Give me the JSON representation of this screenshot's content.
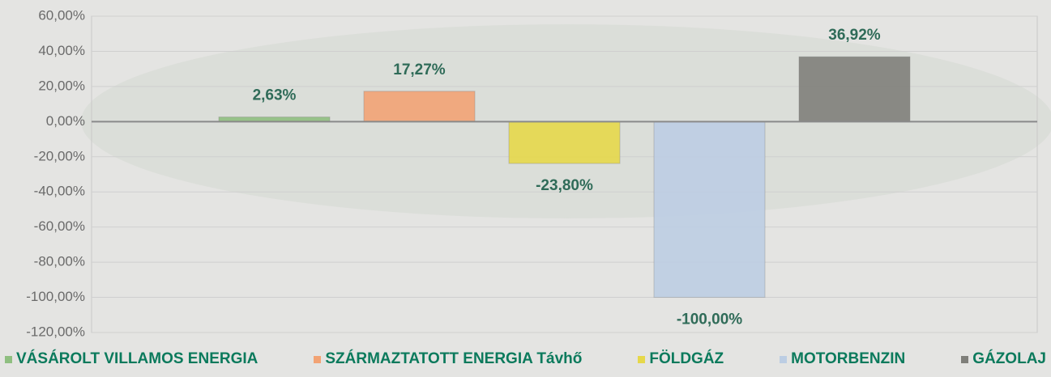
{
  "chart_data": {
    "type": "bar",
    "categories": [
      null
    ],
    "series": [
      {
        "name": "VÁSÁROLT VILLAMOS ENERGIA",
        "color": "#8fbf80",
        "values": [
          2.63
        ],
        "value_labels": [
          "2,63%"
        ]
      },
      {
        "name": "SZÁRMAZTATOTT ENERGIA Távhő",
        "color": "#f2a374",
        "values": [
          17.27
        ],
        "value_labels": [
          "17,27%"
        ]
      },
      {
        "name": "FÖLDGÁZ",
        "color": "#e6d84a",
        "values": [
          -23.8
        ],
        "value_labels": [
          "-23,80%"
        ]
      },
      {
        "name": "MOTORBENZIN",
        "color": "#bccde3",
        "values": [
          -100.0
        ],
        "value_labels": [
          "-100,00%"
        ]
      },
      {
        "name": "GÁZOLAJ",
        "color": "#7f7f7a",
        "values": [
          36.92
        ],
        "value_labels": [
          "36,92%"
        ]
      }
    ],
    "ylim": [
      -120,
      60
    ],
    "yticks": [
      {
        "value": -120,
        "label": "-120,00%"
      },
      {
        "value": -100,
        "label": "-100,00%"
      },
      {
        "value": -80,
        "label": "-80,00%"
      },
      {
        "value": -60,
        "label": "-60,00%"
      },
      {
        "value": -40,
        "label": "-40,00%"
      },
      {
        "value": -20,
        "label": "-20,00%"
      },
      {
        "value": 0,
        "label": "0,00%"
      },
      {
        "value": 20,
        "label": "20,00%"
      },
      {
        "value": 40,
        "label": "40,00%"
      },
      {
        "value": 60,
        "label": "60,00%"
      }
    ],
    "legend": "bottom"
  }
}
